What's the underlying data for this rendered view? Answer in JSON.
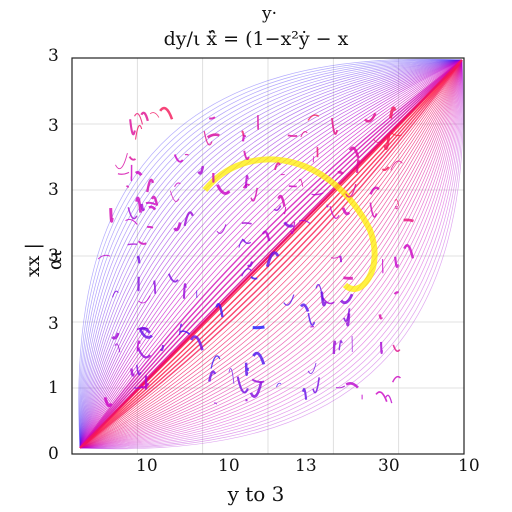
{
  "chart_data": {
    "type": "line",
    "title_top": "y·",
    "title": "dy/ι ẍ̂ = (1−x²ẏ − x",
    "xlabel": "y to 3",
    "ylabel": "xx | αι",
    "x_tick_labels": [
      "10",
      "10",
      "13",
      "30",
      "10"
    ],
    "y_tick_labels": [
      "3",
      "3",
      "3",
      "3",
      "3",
      "1",
      "0"
    ],
    "grid": true,
    "series": [],
    "colors": {
      "low": "#1a1aff",
      "mid": "#c800c8",
      "high": "#ff1a3c",
      "accent": "#ffee00"
    }
  }
}
